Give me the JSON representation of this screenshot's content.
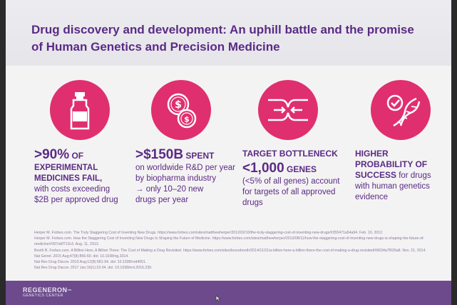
{
  "slide": {
    "title_line1": "Drug discovery and development: An uphill battle and the promise",
    "title_line2": "of Human Genetics and Precision Medicine"
  },
  "columns": [
    {
      "icon": "vial-icon",
      "big": ">90%",
      "big_suffix": " OF",
      "line1": "EXPERIMENTAL",
      "line2": "MEDICINES FAIL,",
      "line3": "with costs exceeding",
      "line4": "$2B per approved drug"
    },
    {
      "icon": "coins-dollar-icon",
      "big": ">$150B",
      "big_suffix": " SPENT",
      "line1": "on worldwide R&D per year",
      "line2": "by biopharma industry",
      "line3": "→ only 10–20 new",
      "line4": "drugs per year"
    },
    {
      "icon": "bottleneck-arrows-icon",
      "heading": "TARGET BOTTLENECK",
      "big": "<1,000",
      "big_suffix": " GENES",
      "line1": "(<5% of all genes) account",
      "line2": "for targets of all approved",
      "line3": "drugs"
    },
    {
      "icon": "dna-check-icon",
      "heading1": "HIGHER",
      "heading2": "PROBABILITY OF",
      "heading3a": "SUCCESS",
      "heading3b": " for drugs",
      "line1": "with human genetics",
      "line2": "evidence"
    }
  ],
  "references": [
    "Herper M. Forbes.com. The Truly Staggering Cost of Inventing New Drugs. https://www.forbes.com/sites/matthewherper/2012/02/10/the-truly-staggering-cost-of-inventing-new-drugs/#355471a54a94. Feb. 10, 2012.",
    "Herper M. Forbes.com. How the Staggering Cost of Inventing New Drugs Is Shaping the Future of Medicine. https://www.forbes.com/sites/matthewherper/2013/08/11/how-the-staggering-cost-of-inventing-new-drugs-is-shaping-the-future-of-",
    "medicine/#307a6f713c3. Aug. 11, 2013.",
    "Booth B. Forbes.com. A Billion Here, A Billion There: The Cost of Making a Drug Revisited. https://www.forbes.com/sites/brucebooth/2014/11/21/a-billion-here-a-billion-there-the-cost-of-making-a-drug-revisited/#6634a7f026a8. Nov. 21, 2014.",
    "Nat Genet. 2015 Aug;47(8):856-60. doi: 10.1038/ng.3314.",
    "Nat Rev Drug Discov. 2013 Aug;12(8):581-94. doi: 10.1038/nrd4051.",
    "Nat Rev Drug Discov. 2017 Jan;16(1):19-34. doi: 10.1038/nrd.2016.230."
  ],
  "footer": {
    "logo": "REGENERON",
    "logo_tm": "™",
    "logo_sub": "GENETICS CENTER"
  },
  "colors": {
    "accent_pink": "#e02f6e",
    "title_purple": "#5a2b85",
    "footer_purple": "#6c4a8c"
  }
}
